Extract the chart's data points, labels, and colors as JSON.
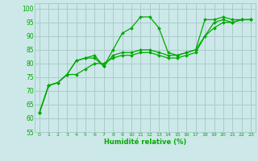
{
  "title": "",
  "xlabel": "Humidité relative (%)",
  "ylabel": "",
  "bg_color": "#cce8e8",
  "grid_color": "#aacccc",
  "line_color": "#00aa00",
  "marker_color": "#00aa00",
  "xlim": [
    -0.5,
    23.5
  ],
  "ylim": [
    55,
    102
  ],
  "yticks": [
    55,
    60,
    65,
    70,
    75,
    80,
    85,
    90,
    95,
    100
  ],
  "xticks": [
    0,
    1,
    2,
    3,
    4,
    5,
    6,
    7,
    8,
    9,
    10,
    11,
    12,
    13,
    14,
    15,
    16,
    17,
    18,
    19,
    20,
    21,
    22,
    23
  ],
  "series": [
    [
      62,
      72,
      73,
      76,
      81,
      82,
      83,
      79,
      85,
      91,
      93,
      97,
      97,
      93,
      84,
      83,
      84,
      85,
      96,
      96,
      97,
      96,
      96,
      96
    ],
    [
      62,
      72,
      73,
      76,
      81,
      82,
      82,
      79,
      83,
      84,
      84,
      85,
      85,
      84,
      83,
      83,
      84,
      85,
      90,
      95,
      96,
      95,
      96,
      96
    ],
    [
      62,
      72,
      73,
      76,
      76,
      78,
      80,
      80,
      82,
      83,
      83,
      84,
      84,
      83,
      82,
      82,
      83,
      84,
      90,
      93,
      95,
      95,
      96,
      96
    ]
  ]
}
